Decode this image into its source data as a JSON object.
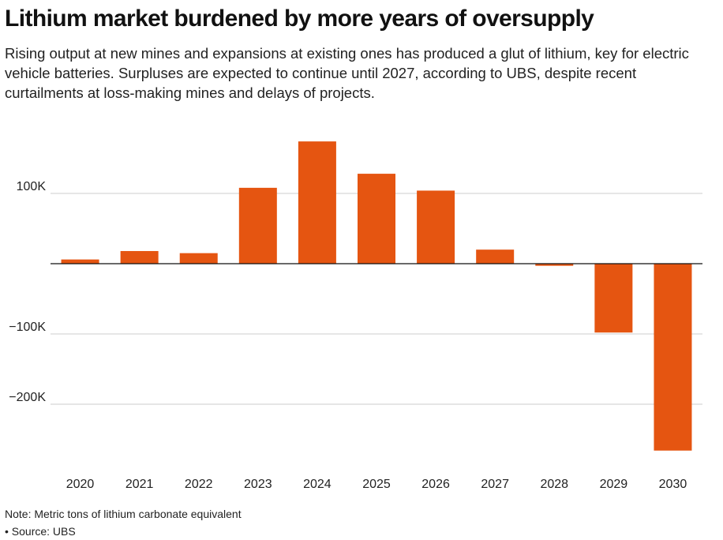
{
  "chart_data": {
    "type": "bar",
    "title": "Lithium market burdened by more years of oversupply",
    "subtitle": "Rising output at new mines and expansions at existing ones has produced a glut of lithium, key for electric vehicle batteries. Surpluses are expected to continue until 2027, according to UBS, despite recent curtailments at loss-making mines and delays of projects.",
    "categories": [
      "2020",
      "2021",
      "2022",
      "2023",
      "2024",
      "2025",
      "2026",
      "2027",
      "2028",
      "2029",
      "2030"
    ],
    "values": [
      6000,
      18000,
      15000,
      108000,
      174000,
      128000,
      104000,
      20000,
      -3000,
      -98000,
      -266000
    ],
    "xlabel": "",
    "ylabel": "",
    "ylim": [
      -285000,
      200000
    ],
    "yticks": [
      {
        "value": 100000,
        "label": "100K"
      },
      {
        "value": -100000,
        "label": "−100K"
      },
      {
        "value": -200000,
        "label": "−200K"
      }
    ],
    "grid": true,
    "bar_color": "#E55511",
    "note": "Note: Metric tons of lithium carbonate equivalent",
    "source": "• Source: UBS"
  }
}
